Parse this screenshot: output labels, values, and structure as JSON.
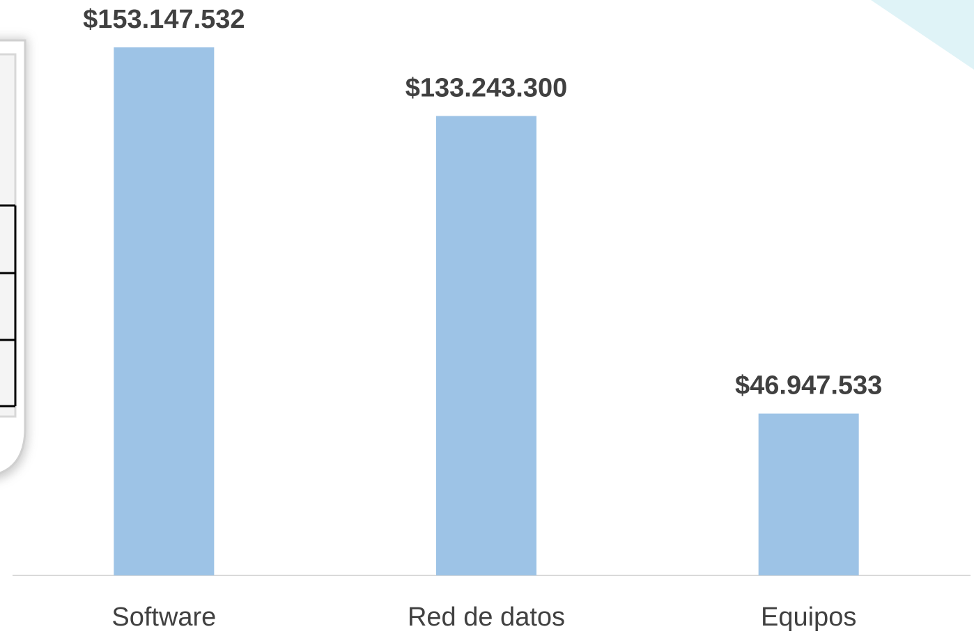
{
  "chart_data": {
    "type": "bar",
    "categories": [
      "Software",
      "Red de datos",
      "Equipos"
    ],
    "values": [
      153147532,
      133243300,
      46947533
    ],
    "value_labels": [
      "$153.147.532",
      "$133.243.300",
      "$46.947.533"
    ],
    "color": "#9dc3e6"
  }
}
